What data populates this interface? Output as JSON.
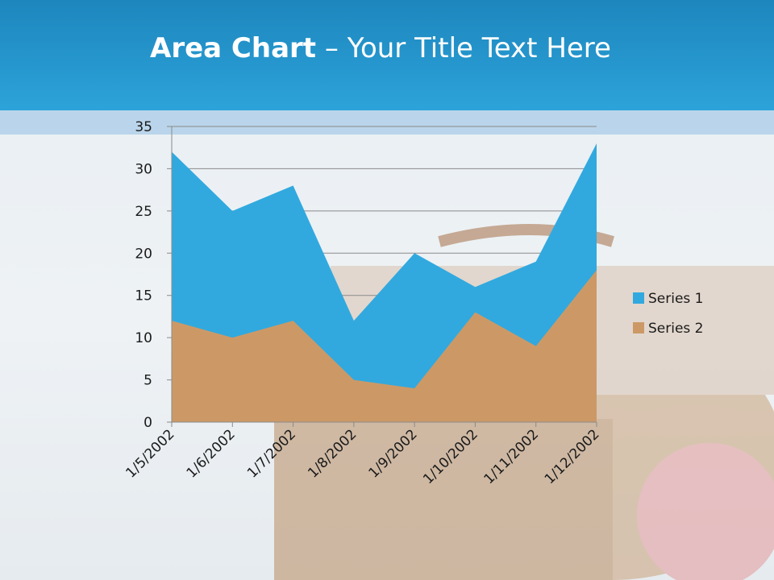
{
  "slide": {
    "title_bold": "Area Chart",
    "title_dash": " – ",
    "title_rest": "Your Title Text Here"
  },
  "colors": {
    "header": "#2ca3da",
    "series_1": "#31a9df",
    "series_2": "#cc9966"
  },
  "background_image": "beach-picnic-basket-photo",
  "chart_data": {
    "type": "area",
    "title": "",
    "xlabel": "",
    "ylabel": "",
    "categories": [
      "1/5/2002",
      "1/6/2002",
      "1/7/2002",
      "1/8/2002",
      "1/9/2002",
      "1/10/2002",
      "1/11/2002",
      "1/12/2002"
    ],
    "series": [
      {
        "name": "Series 1",
        "values": [
          32,
          25,
          28,
          12,
          20,
          16,
          19,
          33
        ]
      },
      {
        "name": "Series 2",
        "values": [
          12,
          10,
          12,
          5,
          4,
          13,
          9,
          18
        ]
      }
    ],
    "ylim": [
      0,
      35
    ],
    "yticks": [
      0,
      5,
      10,
      15,
      20,
      25,
      30,
      35
    ],
    "grid": "horizontal",
    "stacked": false,
    "legend": "right"
  }
}
